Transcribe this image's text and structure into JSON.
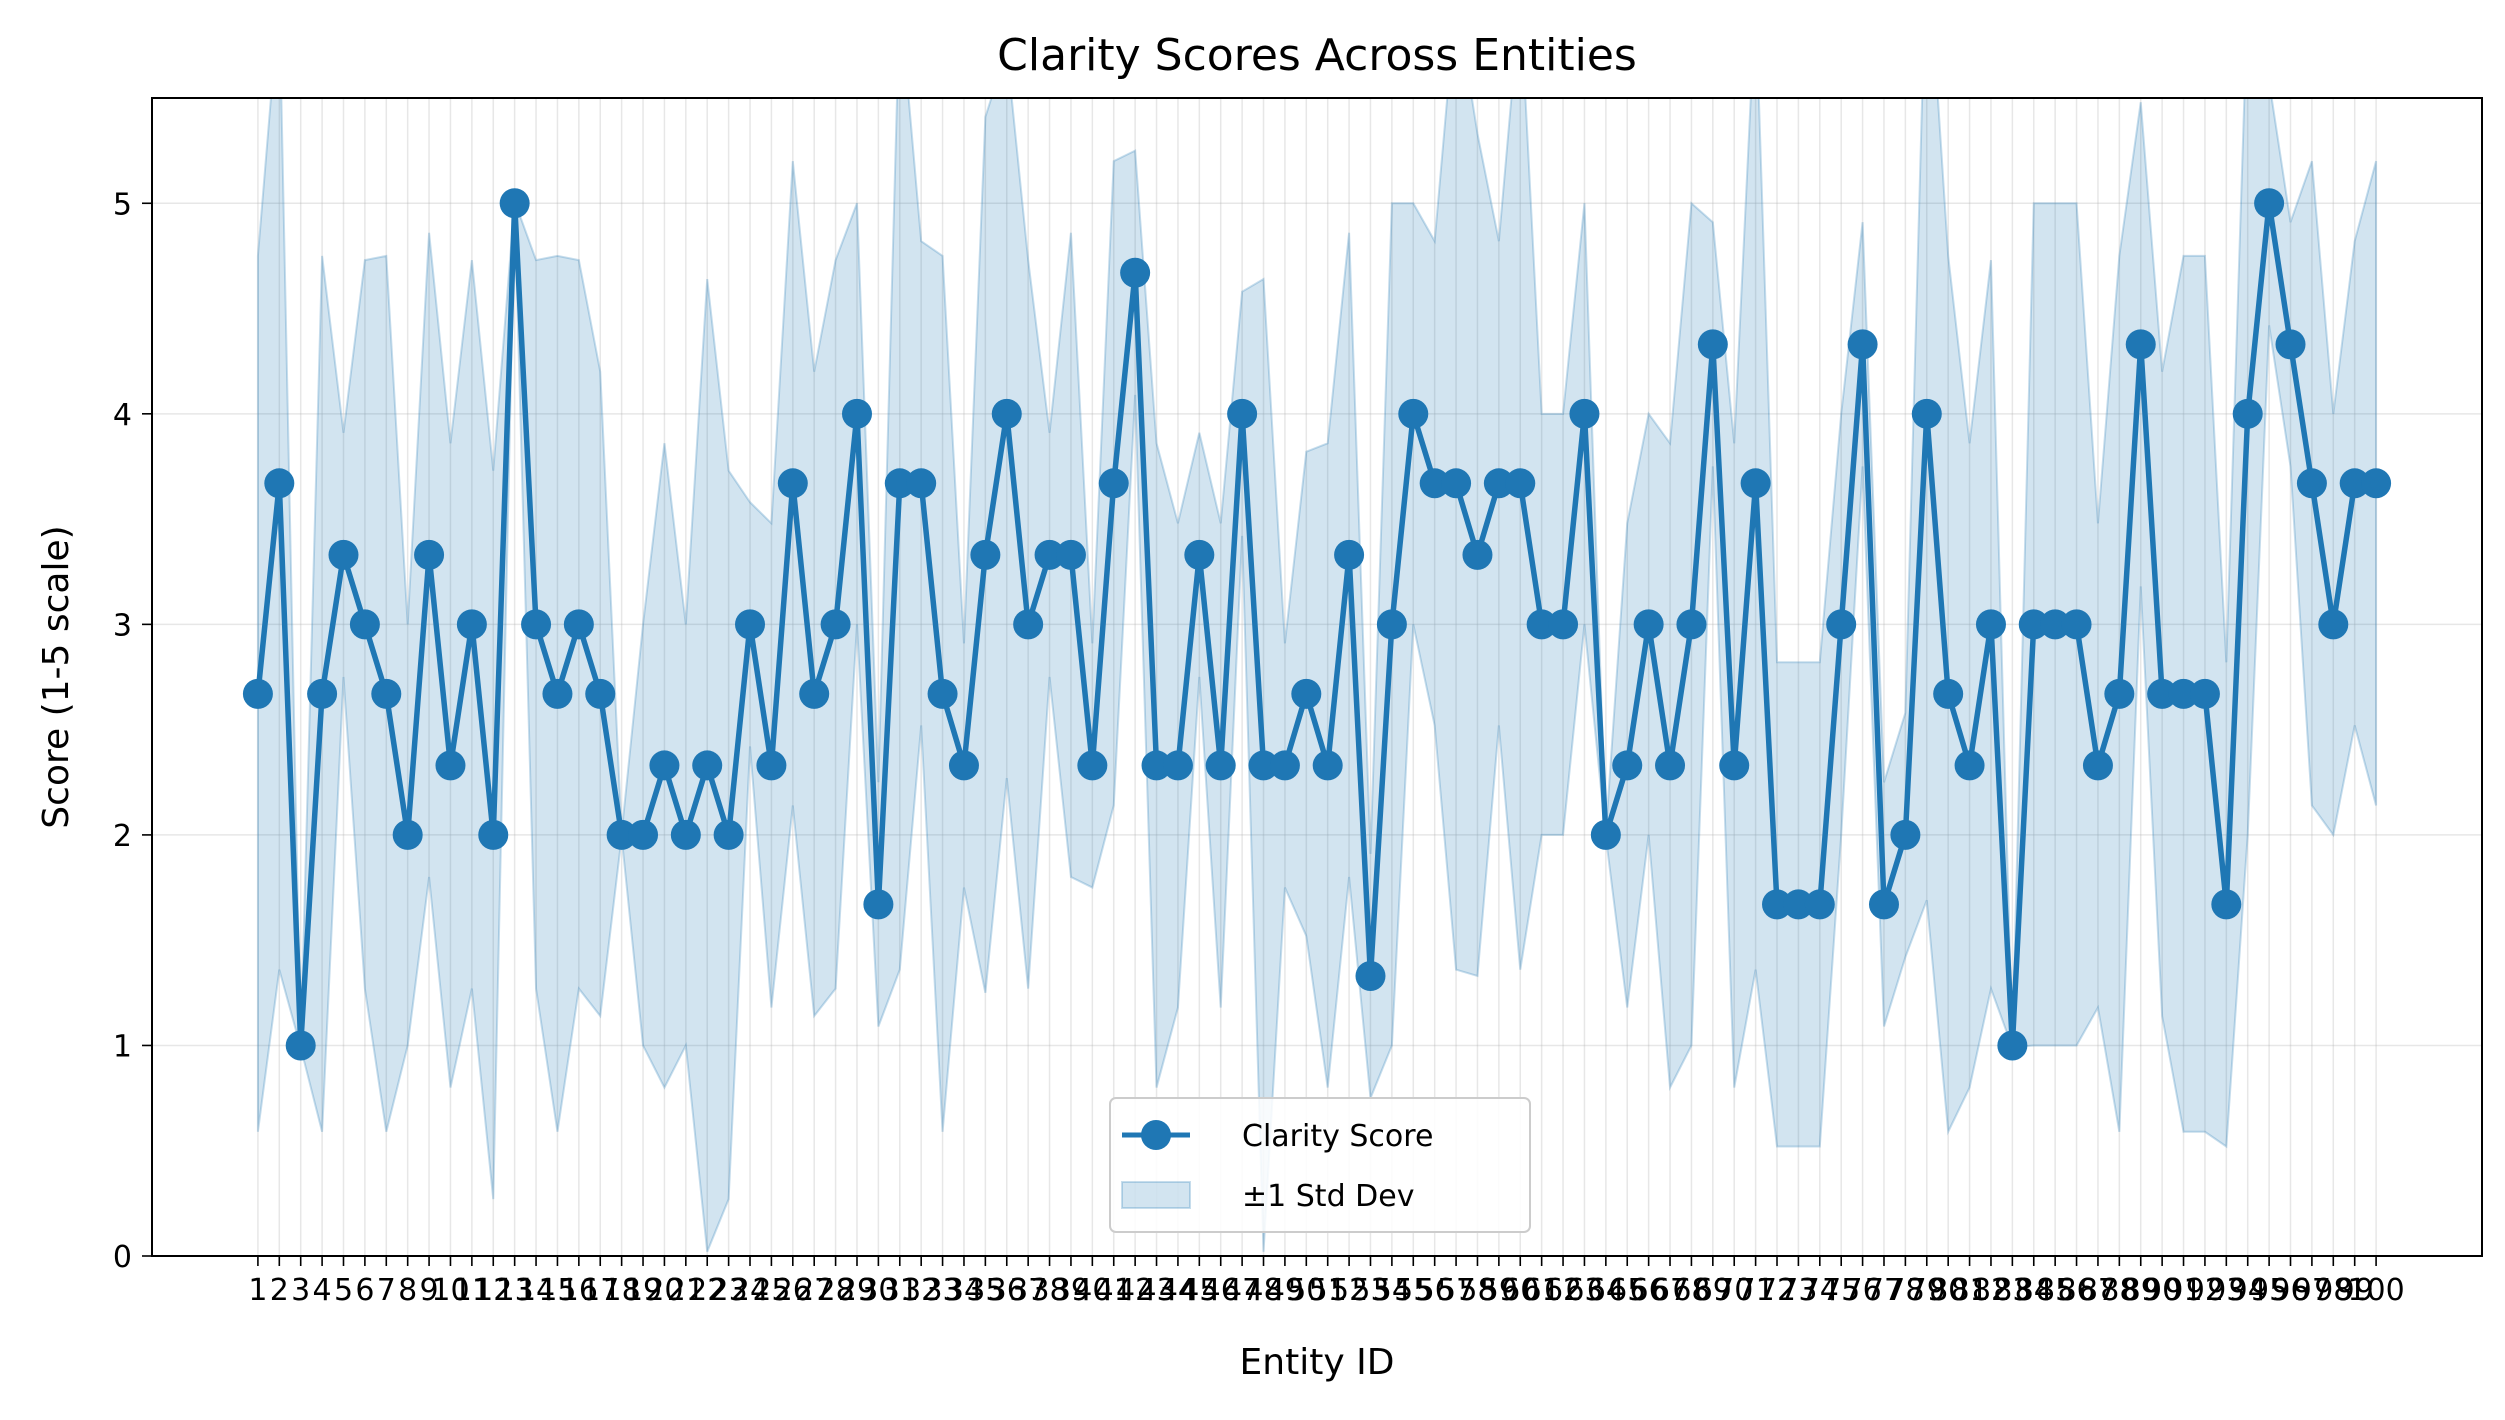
{
  "chart_data": {
    "type": "line",
    "title": "Clarity Scores Across Entities",
    "xlabel": "Entity ID",
    "ylabel": "Score (1-5 scale)",
    "ylim": [
      0,
      5.5
    ],
    "yticks": [
      0,
      1,
      2,
      3,
      4,
      5
    ],
    "grid": true,
    "legend_position": "bottom-center",
    "colors": {
      "line": "#1f77b4",
      "band": "#1f77b4",
      "grid": "#b0b0b0"
    },
    "x": [
      1,
      2,
      3,
      4,
      5,
      6,
      7,
      8,
      9,
      10,
      11,
      12,
      13,
      14,
      15,
      16,
      17,
      18,
      19,
      20,
      21,
      22,
      23,
      24,
      25,
      26,
      27,
      28,
      29,
      30,
      31,
      32,
      33,
      34,
      35,
      36,
      37,
      38,
      39,
      40,
      41,
      42,
      43,
      44,
      45,
      46,
      47,
      48,
      49,
      50,
      51,
      52,
      53,
      54,
      55,
      56,
      57,
      58,
      59,
      60,
      61,
      62,
      63,
      64,
      65,
      66,
      67,
      68,
      69,
      70,
      71,
      72,
      73,
      74,
      75,
      76,
      77,
      78,
      79,
      80,
      81,
      82,
      83,
      84,
      85,
      86,
      87,
      88,
      89,
      90,
      91,
      92,
      93,
      94,
      95,
      96,
      97,
      98,
      99,
      100
    ],
    "series": [
      {
        "name": "Clarity Score",
        "values": [
          2.67,
          3.67,
          1.0,
          2.67,
          3.33,
          3.0,
          2.67,
          2.0,
          3.33,
          2.33,
          3.0,
          2.0,
          5.0,
          3.0,
          2.67,
          3.0,
          2.67,
          2.0,
          2.0,
          2.33,
          2.0,
          2.33,
          2.0,
          3.0,
          2.33,
          3.67,
          2.67,
          3.0,
          4.0,
          1.67,
          3.67,
          3.67,
          2.67,
          2.33,
          3.33,
          4.0,
          3.0,
          3.33,
          3.33,
          2.33,
          3.67,
          4.67,
          2.33,
          2.33,
          3.33,
          2.33,
          4.0,
          2.33,
          2.33,
          2.67,
          2.33,
          3.33,
          1.33,
          3.0,
          4.0,
          3.67,
          3.67,
          3.33,
          3.67,
          3.67,
          3.0,
          3.0,
          4.0,
          2.0,
          2.33,
          3.0,
          2.33,
          3.0,
          4.33,
          2.33,
          3.67,
          1.67,
          1.67,
          1.67,
          3.0,
          4.33,
          1.67,
          2.0,
          4.0,
          2.67,
          2.33,
          3.0,
          1.0,
          3.0,
          3.0,
          3.0,
          2.33,
          2.67,
          4.33,
          2.67,
          2.67,
          2.67,
          1.67,
          4.0,
          5.0,
          4.33,
          3.67,
          3.0,
          3.67,
          3.67
        ]
      },
      {
        "name": "±1 Std Dev",
        "std": [
          2.08,
          2.31,
          0.01,
          2.08,
          0.58,
          1.73,
          2.08,
          1.0,
          1.53,
          1.53,
          1.73,
          1.73,
          0.01,
          1.73,
          2.08,
          1.73,
          1.53,
          0.01,
          1.0,
          1.53,
          1.0,
          2.31,
          1.73,
          0.58,
          1.15,
          1.53,
          1.53,
          1.73,
          1.0,
          0.58,
          2.31,
          1.15,
          2.08,
          0.58,
          2.08,
          1.73,
          1.73,
          0.58,
          1.53,
          0.58,
          1.53,
          0.58,
          1.53,
          1.15,
          0.58,
          1.15,
          0.58,
          2.31,
          0.58,
          1.15,
          1.53,
          1.53,
          0.58,
          2.0,
          1.0,
          1.15,
          2.31,
          2.0,
          1.15,
          2.31,
          1.0,
          1.0,
          1.0,
          0.01,
          1.15,
          1.0,
          1.53,
          2.0,
          0.58,
          1.53,
          2.31,
          1.15,
          1.15,
          1.15,
          1.0,
          0.58,
          0.58,
          0.58,
          2.31,
          2.08,
          1.53,
          1.73,
          0.01,
          2.0,
          2.0,
          2.0,
          1.15,
          2.08,
          1.15,
          1.53,
          2.08,
          2.08,
          1.15,
          2.0,
          0.58,
          0.58,
          1.53,
          1.0,
          1.15,
          1.53
        ]
      }
    ]
  }
}
